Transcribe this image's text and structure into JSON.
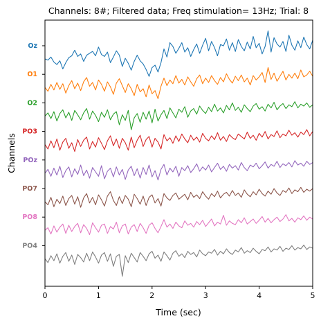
{
  "chart_data": {
    "type": "line",
    "title": "Channels: 8#; Filtered data; Freq stimulation= 13Hz; Trial: 8",
    "xlabel": "Time (sec)",
    "ylabel": "Channels",
    "xlim": [
      0,
      5
    ],
    "xticks": [
      "0",
      "1",
      "2",
      "3",
      "4",
      "5"
    ],
    "grid": false,
    "legend": "none",
    "series": [
      {
        "name": "Oz",
        "color": "#1f77b4",
        "y": [
          0.0,
          -0.2,
          0.3,
          -0.5,
          -0.9,
          -0.3,
          -1.6,
          -0.6,
          0.2,
          0.5,
          1.4,
          0.4,
          0.8,
          -0.4,
          0.6,
          0.9,
          1.2,
          0.5,
          1.9,
          0.7,
          0.4,
          1.1,
          -0.6,
          0.3,
          1.3,
          0.6,
          -1.2,
          0.1,
          -0.7,
          -1.8,
          -0.4,
          0.6,
          -0.3,
          -0.8,
          -1.7,
          -2.8,
          -1.4,
          -1.0,
          -2.1,
          -0.6,
          1.6,
          0.3,
          2.6,
          2.0,
          0.9,
          1.7,
          2.6,
          1.1,
          1.8,
          0.4,
          1.5,
          2.4,
          0.9,
          2.2,
          3.3,
          1.3,
          2.8,
          1.8,
          0.5,
          2.3,
          2.1,
          3.2,
          1.4,
          2.6,
          1.2,
          3.1,
          2.0,
          1.3,
          2.7,
          1.6,
          3.6,
          1.8,
          2.5,
          0.8,
          2.0,
          4.5,
          1.1,
          3.4,
          2.4,
          1.9,
          2.8,
          1.2,
          3.8,
          2.2,
          1.4,
          2.9,
          1.8,
          3.5,
          2.3,
          1.6,
          3.0
        ]
      },
      {
        "name": "O1",
        "color": "#ff7f0e",
        "y": [
          0.0,
          -0.6,
          0.5,
          -0.4,
          0.8,
          -0.3,
          0.6,
          -0.9,
          0.3,
          1.1,
          -0.2,
          0.7,
          -0.5,
          0.9,
          1.6,
          0.2,
          0.8,
          -0.4,
          1.2,
          0.5,
          -0.6,
          0.9,
          0.1,
          -1.1,
          0.7,
          1.4,
          0.3,
          -0.8,
          0.6,
          -0.2,
          -1.3,
          0.5,
          -0.7,
          -0.2,
          -1.5,
          0.4,
          -1.0,
          -0.5,
          -1.8,
          0.2,
          1.5,
          0.3,
          1.2,
          0.6,
          1.9,
          0.7,
          1.3,
          0.4,
          1.7,
          0.9,
          0.2,
          1.4,
          2.0,
          0.6,
          1.5,
          0.8,
          1.9,
          1.1,
          0.5,
          1.6,
          0.9,
          2.2,
          1.3,
          0.7,
          1.8,
          1.1,
          2.0,
          0.9,
          1.5,
          0.4,
          1.9,
          1.2,
          1.7,
          2.4,
          0.8,
          3.2,
          1.3,
          2.3,
          1.0,
          1.8,
          2.6,
          1.2,
          2.1,
          1.5,
          2.3,
          1.4,
          2.8,
          1.7,
          2.0,
          2.6,
          1.8
        ]
      },
      {
        "name": "O2",
        "color": "#2ca02c",
        "y": [
          0.0,
          0.5,
          -0.4,
          0.7,
          -0.8,
          0.4,
          1.0,
          -0.3,
          0.6,
          -0.7,
          0.9,
          0.2,
          -0.6,
          0.5,
          1.2,
          -0.5,
          0.8,
          0.1,
          -0.9,
          0.6,
          -0.2,
          1.0,
          -0.6,
          0.3,
          0.7,
          -1.4,
          0.2,
          -0.7,
          0.9,
          -2.2,
          -0.3,
          0.4,
          -1.0,
          0.6,
          -0.5,
          0.8,
          -1.1,
          1.1,
          -0.8,
          0.2,
          0.9,
          -0.4,
          1.3,
          0.5,
          -0.3,
          1.1,
          0.6,
          1.5,
          -0.2,
          0.8,
          1.2,
          0.3,
          1.6,
          0.9,
          0.4,
          1.4,
          0.7,
          1.9,
          0.8,
          1.3,
          0.5,
          1.7,
          1.0,
          2.1,
          0.9,
          1.4,
          0.6,
          1.8,
          1.2,
          0.7,
          1.6,
          2.0,
          1.1,
          1.5,
          0.8,
          1.9,
          1.3,
          2.2,
          1.0,
          1.6,
          2.0,
          1.2,
          1.8,
          1.5,
          2.3,
          1.3,
          1.9,
          1.6,
          2.1,
          1.4,
          1.8
        ]
      },
      {
        "name": "PO3",
        "color": "#d62728",
        "y": [
          0.0,
          -0.7,
          0.6,
          -0.5,
          0.9,
          -0.9,
          0.4,
          1.0,
          -0.6,
          0.3,
          -1.1,
          0.8,
          -0.3,
          0.7,
          1.2,
          -0.7,
          0.5,
          -0.4,
          1.1,
          0.2,
          -0.8,
          0.6,
          1.4,
          -0.2,
          0.9,
          -0.6,
          1.0,
          0.3,
          -0.9,
          1.2,
          -0.5,
          0.7,
          1.5,
          -0.3,
          0.8,
          1.3,
          -0.4,
          1.0,
          0.4,
          -0.7,
          1.6,
          0.6,
          1.1,
          0.2,
          1.4,
          0.5,
          1.7,
          0.9,
          0.3,
          1.5,
          0.7,
          1.2,
          0.4,
          1.8,
          1.0,
          0.6,
          1.4,
          0.8,
          1.9,
          0.7,
          1.3,
          0.5,
          1.6,
          1.1,
          0.8,
          1.7,
          1.3,
          0.9,
          2.0,
          1.0,
          1.5,
          0.7,
          1.8,
          1.2,
          2.1,
          0.9,
          1.6,
          1.3,
          2.2,
          1.1,
          1.7,
          1.4,
          2.3,
          1.5,
          1.9,
          1.2,
          2.0,
          1.6,
          2.4,
          1.4,
          2.1
        ]
      },
      {
        "name": "POz",
        "color": "#9467bd",
        "y": [
          0.0,
          0.6,
          -0.5,
          0.8,
          -0.3,
          1.1,
          -0.7,
          0.4,
          1.0,
          -0.6,
          0.7,
          -0.2,
          1.3,
          -0.4,
          0.5,
          -0.8,
          0.9,
          0.2,
          -0.5,
          1.2,
          -0.9,
          0.3,
          0.8,
          -0.6,
          1.0,
          -0.3,
          0.6,
          -1.0,
          0.5,
          1.1,
          -0.4,
          0.7,
          -0.8,
          0.9,
          -0.2,
          1.3,
          -0.6,
          0.4,
          -1.1,
          0.6,
          1.4,
          -0.3,
          0.8,
          0.2,
          1.1,
          -0.5,
          0.9,
          0.4,
          1.2,
          0.1,
          0.7,
          1.5,
          0.3,
          1.0,
          0.5,
          1.3,
          0.2,
          0.9,
          1.6,
          0.6,
          1.1,
          0.3,
          1.4,
          0.8,
          1.2,
          0.5,
          1.7,
          0.9,
          0.4,
          1.3,
          1.0,
          1.6,
          0.7,
          1.2,
          1.8,
          0.8,
          1.4,
          1.1,
          1.9,
          0.9,
          1.5,
          1.2,
          1.7,
          1.0,
          2.0,
          1.3,
          1.6,
          1.1,
          1.9,
          1.4,
          1.7
        ]
      },
      {
        "name": "PO7",
        "color": "#8c564b",
        "y": [
          0.0,
          -0.5,
          0.7,
          -0.8,
          0.4,
          -0.3,
          0.9,
          -0.6,
          0.5,
          1.0,
          -0.4,
          0.8,
          -0.9,
          0.6,
          1.3,
          -0.2,
          0.7,
          -0.5,
          1.1,
          0.3,
          -0.7,
          0.9,
          1.6,
          0.2,
          -0.6,
          0.8,
          -0.3,
          1.0,
          0.4,
          -0.8,
          1.2,
          0.5,
          -0.4,
          0.9,
          -0.6,
          0.7,
          1.1,
          -0.2,
          0.5,
          -0.7,
          1.3,
          0.6,
          0.2,
          1.0,
          1.4,
          0.4,
          0.8,
          1.2,
          0.3,
          1.5,
          0.7,
          1.1,
          0.5,
          1.6,
          0.9,
          0.4,
          1.3,
          0.8,
          1.7,
          0.6,
          1.2,
          1.5,
          0.9,
          1.8,
          1.0,
          1.4,
          0.7,
          1.9,
          1.2,
          0.8,
          1.6,
          1.1,
          2.0,
          1.3,
          0.9,
          1.7,
          1.2,
          2.1,
          1.4,
          1.0,
          1.8,
          1.5,
          2.2,
          1.3,
          1.9,
          1.6,
          2.3,
          1.5,
          2.0,
          1.7,
          2.1
        ]
      },
      {
        "name": "PO8",
        "color": "#e377c2",
        "y": [
          0.0,
          0.4,
          -0.6,
          0.7,
          -0.3,
          0.5,
          1.0,
          -0.5,
          0.8,
          -0.2,
          0.6,
          1.1,
          -0.4,
          0.9,
          0.3,
          -0.7,
          1.2,
          0.4,
          -0.3,
          0.8,
          1.0,
          -0.5,
          0.6,
          0.2,
          1.3,
          -0.4,
          0.7,
          1.0,
          -0.6,
          0.5,
          0.9,
          -0.2,
          1.1,
          0.4,
          -0.5,
          0.8,
          1.2,
          0.3,
          -0.4,
          0.6,
          1.7,
          0.5,
          1.0,
          0.3,
          1.3,
          0.7,
          0.4,
          1.5,
          0.8,
          1.1,
          0.5,
          1.4,
          0.9,
          1.6,
          0.6,
          1.2,
          1.8,
          0.7,
          1.3,
          1.0,
          2.4,
          0.8,
          1.5,
          1.1,
          0.9,
          1.7,
          1.2,
          2.0,
          1.0,
          1.4,
          1.8,
          1.1,
          1.6,
          2.2,
          1.3,
          1.9,
          1.2,
          1.7,
          2.1,
          1.4,
          1.8,
          2.5,
          1.5,
          1.9,
          1.3,
          2.0,
          1.7,
          2.3,
          1.6,
          2.1,
          1.8
        ]
      },
      {
        "name": "PO4",
        "color": "#7f7f7f",
        "y": [
          0.0,
          -0.6,
          0.5,
          -0.3,
          0.8,
          -0.7,
          0.4,
          1.0,
          -0.4,
          0.6,
          -0.9,
          0.7,
          0.2,
          -0.5,
          0.9,
          -0.3,
          1.1,
          0.3,
          -0.7,
          0.6,
          1.0,
          -0.4,
          0.8,
          -1.2,
          0.4,
          0.7,
          -2.8,
          0.5,
          -0.6,
          0.9,
          0.2,
          -0.5,
          1.0,
          0.4,
          -0.3,
          0.8,
          1.2,
          0.1,
          0.6,
          -0.4,
          1.1,
          0.5,
          -0.2,
          0.9,
          1.3,
          0.4,
          0.8,
          0.2,
          1.2,
          0.7,
          1.0,
          0.3,
          1.4,
          0.8,
          0.5,
          1.1,
          0.9,
          1.5,
          0.6,
          1.2,
          0.8,
          1.6,
          1.0,
          0.7,
          1.4,
          1.1,
          1.8,
          0.9,
          1.3,
          1.0,
          1.7,
          1.2,
          0.8,
          1.5,
          1.3,
          1.9,
          1.1,
          1.6,
          1.4,
          2.0,
          1.2,
          1.7,
          1.5,
          2.1,
          1.4,
          1.8,
          1.6,
          2.2,
          1.5,
          1.9,
          1.7
        ]
      }
    ]
  }
}
